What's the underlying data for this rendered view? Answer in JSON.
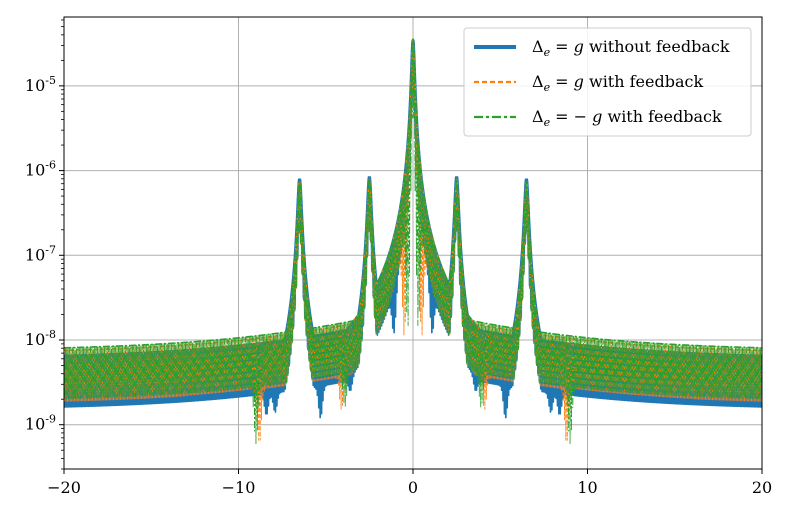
{
  "chart_data": {
    "type": "line",
    "title": "",
    "xlabel": "",
    "ylabel": "",
    "xlim": [
      -20,
      20
    ],
    "ylim": [
      3e-10,
      6.5e-05
    ],
    "yscale": "log",
    "grid": true,
    "legend_position": "top-right",
    "x_ticks": [
      -20,
      -10,
      0,
      10,
      20
    ],
    "x_tick_labels": [
      "−20",
      "−10",
      "0",
      "10",
      "20"
    ],
    "y_ticks": [
      1e-09,
      1e-08,
      1e-07,
      1e-06,
      1e-05
    ],
    "y_tick_labels": [
      {
        "base": "10",
        "exp": "-9"
      },
      {
        "base": "10",
        "exp": "-8"
      },
      {
        "base": "10",
        "exp": "-7"
      },
      {
        "base": "10",
        "exp": "-6"
      },
      {
        "base": "10",
        "exp": "-5"
      }
    ],
    "series": [
      {
        "name": "Δe = g without feedback",
        "legend_math": "Δ",
        "legend_sub": "e",
        "legend_eq": " = ",
        "legend_sym": "g",
        "legend_tail": " without feedback",
        "color": "#1f77b4",
        "style": "solid",
        "peaks": [
          [
            -6.5,
            8e-07
          ],
          [
            -2.5,
            8.5e-07
          ],
          [
            0,
            3.5e-05
          ],
          [
            2.5,
            8.5e-07
          ],
          [
            6.5,
            8e-07
          ]
        ],
        "dips": [
          [
            -8.4,
            1.3e-09
          ],
          [
            -7.9,
            1.4e-09
          ],
          [
            -5.3,
            1.2e-09
          ],
          [
            -3.6,
            2.5e-09
          ],
          [
            -1.1,
            1.2e-08
          ],
          [
            1.1,
            1.2e-08
          ],
          [
            3.6,
            2.5e-09
          ],
          [
            5.3,
            1.2e-09
          ],
          [
            7.9,
            1.4e-09
          ],
          [
            8.4,
            1.3e-09
          ]
        ],
        "edge_value": 6e-09
      },
      {
        "name": "Δe = g with feedback",
        "legend_math": "Δ",
        "legend_sub": "e",
        "legend_eq": " = ",
        "legend_sym": "g",
        "legend_tail": " with feedback",
        "color": "#ff7f0e",
        "style": "dashed",
        "peaks": [
          [
            -6.5,
            7.5e-07
          ],
          [
            -2.5,
            8e-07
          ],
          [
            0,
            3.6e-05
          ],
          [
            2.5,
            8e-07
          ],
          [
            6.5,
            7.5e-07
          ]
        ],
        "dips": [
          [
            -8.8,
            6e-10
          ],
          [
            -4.1,
            1.5e-09
          ],
          [
            -0.5,
            1.1e-08
          ],
          [
            0.5,
            1.1e-08
          ],
          [
            4.1,
            1.5e-09
          ],
          [
            8.8,
            6e-10
          ]
        ],
        "edge_value": 7e-09
      },
      {
        "name": "Δe = −g with feedback",
        "legend_math": "Δ",
        "legend_sub": "e",
        "legend_eq": " = − ",
        "legend_sym": "g",
        "legend_tail": " with feedback",
        "color": "#2ca02c",
        "style": "dashdot",
        "peaks": [
          [
            -6.5,
            7.5e-07
          ],
          [
            -2.5,
            8e-07
          ],
          [
            0,
            3.6e-05
          ],
          [
            2.5,
            8e-07
          ],
          [
            6.5,
            7.5e-07
          ]
        ],
        "dips": [
          [
            -9.0,
            6e-10
          ],
          [
            -3.9,
            1.6e-09
          ],
          [
            -0.3,
            1.4e-08
          ],
          [
            0.3,
            1.4e-08
          ],
          [
            3.9,
            1.6e-09
          ],
          [
            9.0,
            6e-10
          ]
        ],
        "edge_value": 7.5e-09
      }
    ]
  }
}
